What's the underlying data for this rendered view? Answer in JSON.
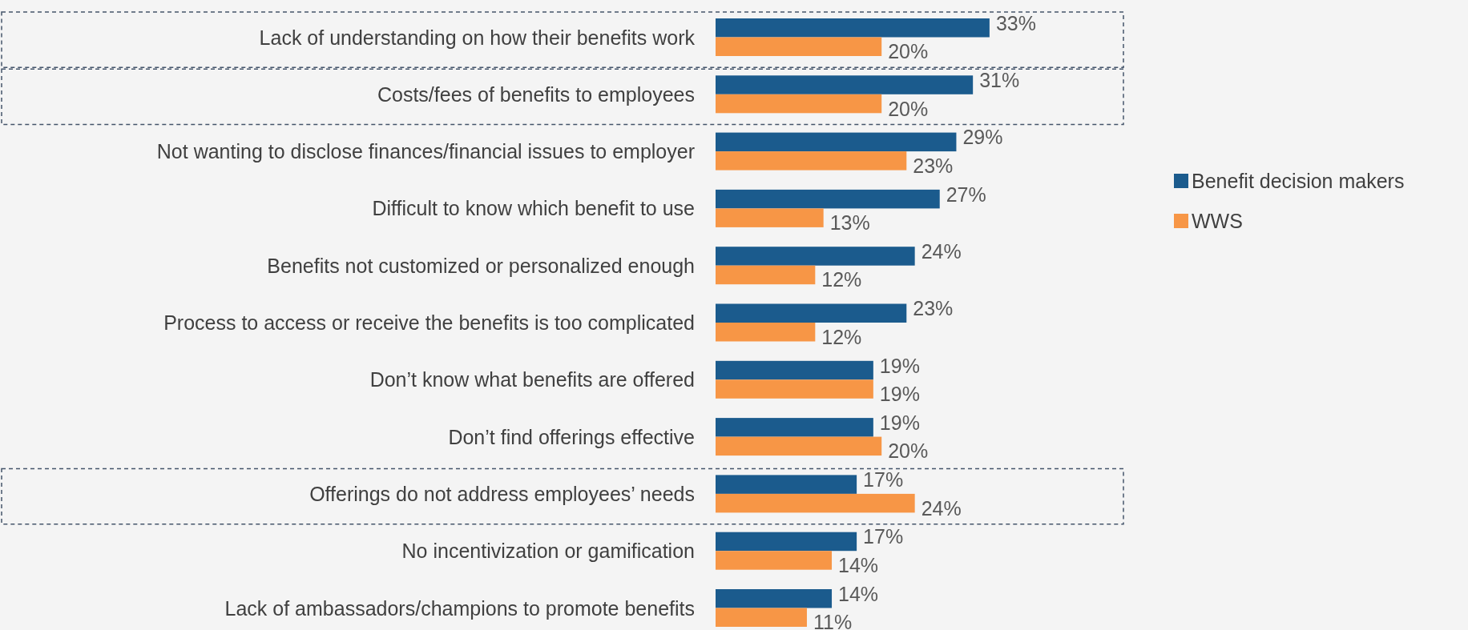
{
  "chart_data": {
    "type": "bar",
    "orientation": "horizontal",
    "categories": [
      "Lack of understanding on how their benefits work",
      "Costs/fees of benefits to employees",
      "Not wanting to disclose finances/financial issues to employer",
      "Difficult to know which benefit to use",
      "Benefits not customized or personalized enough",
      "Process to access or receive the benefits is too complicated",
      "Don’t know what benefits are offered",
      "Don’t find offerings effective",
      "Offerings do not address employees’ needs",
      "No incentivization or gamification",
      "Lack of ambassadors/champions to promote benefits"
    ],
    "series": [
      {
        "name": "Benefit decision makers",
        "color": "#1b5b8d",
        "values": [
          33,
          31,
          29,
          27,
          24,
          23,
          19,
          19,
          17,
          17,
          14
        ],
        "value_labels": [
          "33%",
          "31%",
          "29%",
          "27%",
          "24%",
          "23%",
          "19%",
          "19%",
          "17%",
          "17%",
          "14%"
        ]
      },
      {
        "name": "WWS",
        "color": "#f79646",
        "values": [
          20,
          20,
          23,
          13,
          12,
          12,
          19,
          20,
          24,
          14,
          11
        ],
        "value_labels": [
          "20%",
          "20%",
          "23%",
          "13%",
          "12%",
          "12%",
          "19%",
          "20%",
          "24%",
          "14%",
          "11%"
        ]
      }
    ],
    "legend": "right"
  }
}
